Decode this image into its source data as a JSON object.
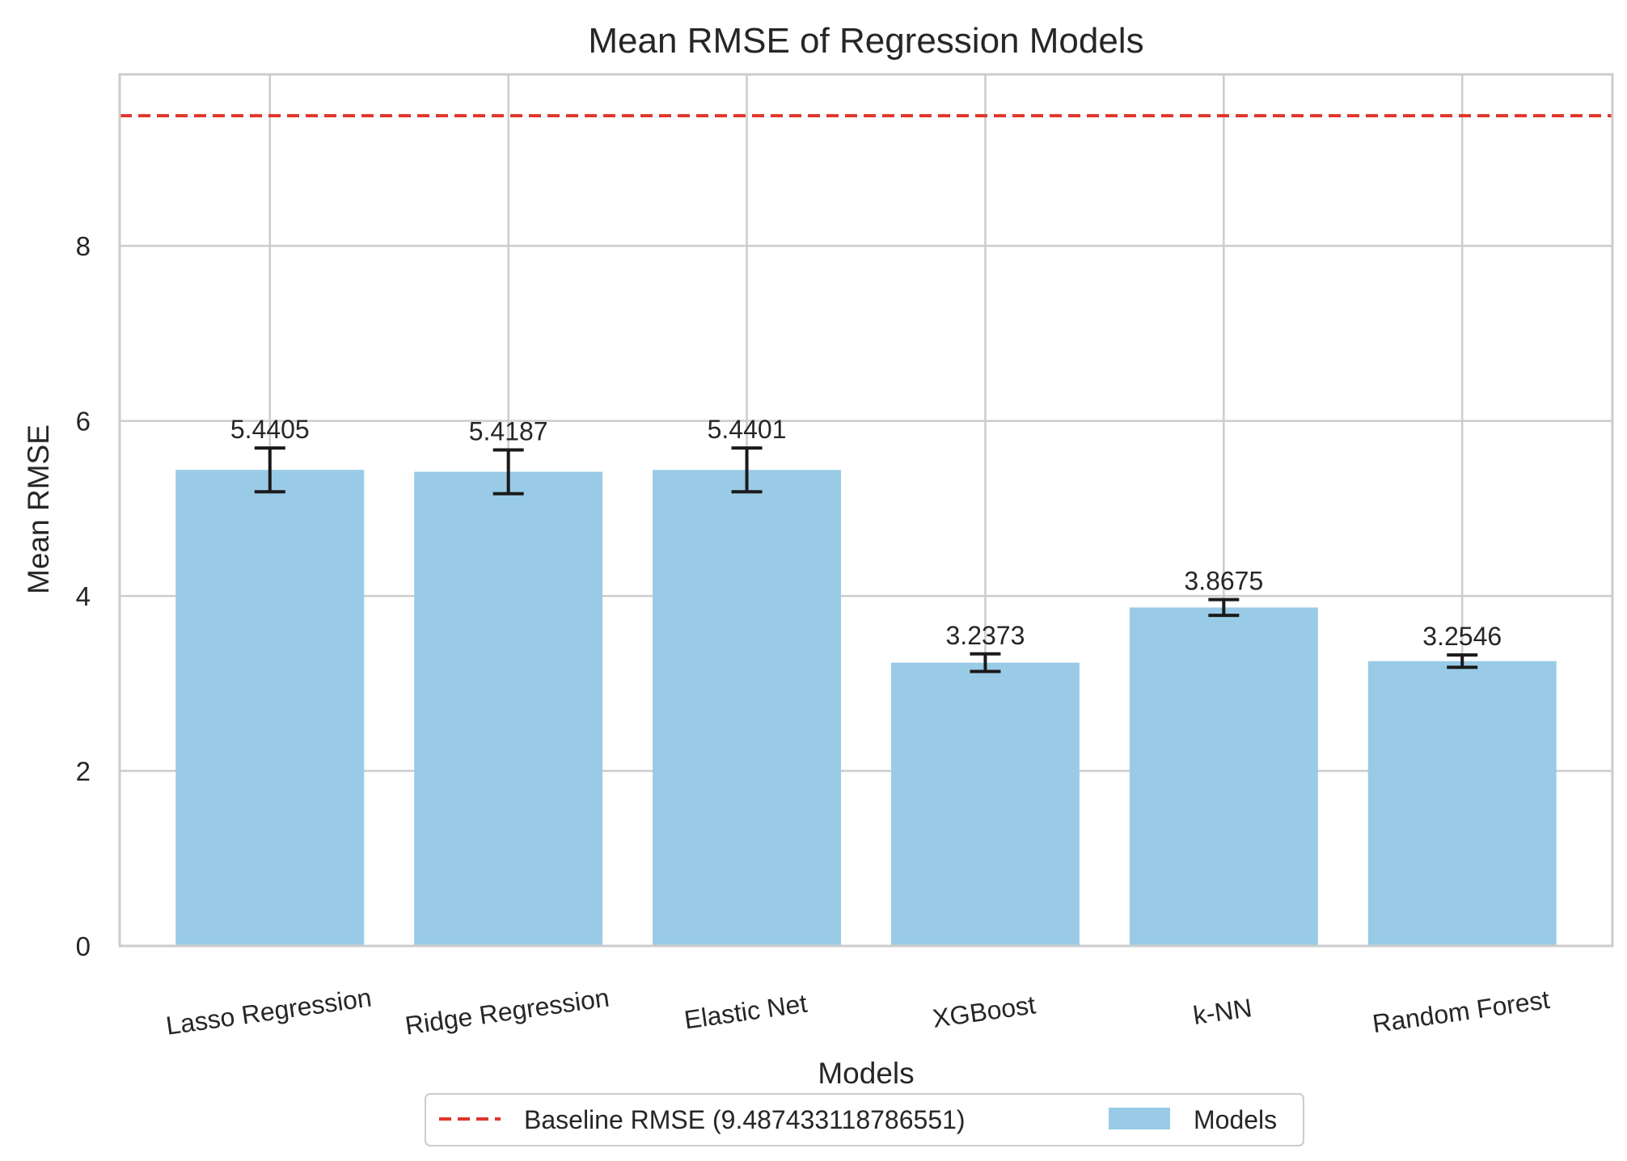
{
  "chart_data": {
    "type": "bar",
    "title": "Mean RMSE of Regression Models",
    "xlabel": "Models",
    "ylabel": "Mean RMSE",
    "categories": [
      "Lasso Regression",
      "Ridge Regression",
      "Elastic Net",
      "XGBoost",
      "k-NN",
      "Random Forest"
    ],
    "values": [
      5.4405,
      5.4187,
      5.4401,
      3.2373,
      3.8675,
      3.2546
    ],
    "value_labels": [
      "5.4405",
      "5.4187",
      "5.4401",
      "3.2373",
      "3.8675",
      "3.2546"
    ],
    "errors": [
      0.25,
      0.25,
      0.25,
      0.1,
      0.09,
      0.07
    ],
    "baseline": {
      "value": 9.487433118786551,
      "label": "Baseline RMSE (9.487433118786551)",
      "color": "#e0352b"
    },
    "series": [
      {
        "name": "Models",
        "color": "#99cbe7"
      }
    ],
    "yticks": [
      0,
      2,
      4,
      6,
      8
    ],
    "ytick_labels": [
      "0",
      "2",
      "4",
      "6",
      "8"
    ],
    "ylim": [
      0,
      9.96
    ],
    "grid": true,
    "legend_position": "bottom-center"
  }
}
